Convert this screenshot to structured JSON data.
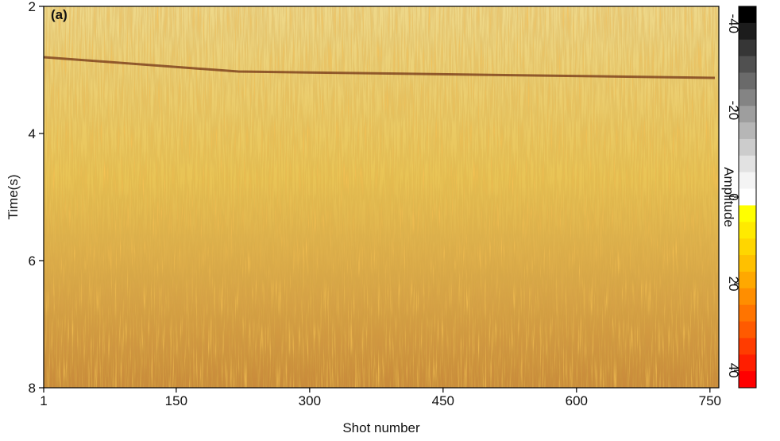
{
  "chart_data": {
    "type": "heatmap",
    "panel_label": "(a)",
    "xlabel": "Shot number",
    "ylabel": "Time(s)",
    "colorbar_label": "Amplitude",
    "xlim": [
      1,
      760
    ],
    "xticks": [
      1,
      150,
      300,
      450,
      600,
      750
    ],
    "ylim": [
      8,
      2
    ],
    "yticks": [
      2,
      4,
      6,
      8
    ],
    "clim": [
      -44,
      44
    ],
    "cticks": [
      -40,
      -20,
      0,
      20,
      40
    ],
    "colormap": [
      "#000000",
      "#1c1c1c",
      "#363636",
      "#505050",
      "#6a6a6a",
      "#848484",
      "#9e9e9e",
      "#b6b6b6",
      "#cccccc",
      "#e2e2e2",
      "#f4f4f4",
      "#ffffff",
      "#ffff00",
      "#ffea00",
      "#ffd600",
      "#ffc000",
      "#ffa800",
      "#ff8e00",
      "#ff7400",
      "#ff5a00",
      "#ff3c00",
      "#ff1e00",
      "#ff0000"
    ]
  }
}
